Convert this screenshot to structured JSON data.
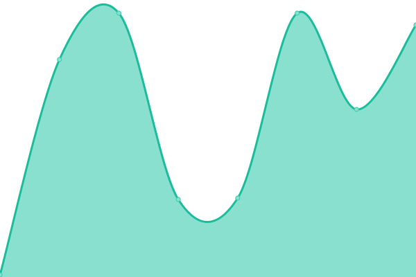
{
  "chart_data": {
    "type": "area",
    "title": "",
    "xlabel": "",
    "ylabel": "",
    "x": [
      0,
      1,
      2,
      3,
      4,
      5,
      6,
      7
    ],
    "values": [
      3,
      314,
      381,
      112,
      114,
      381,
      242,
      364
    ],
    "ylim": [
      0,
      400
    ],
    "grid": false,
    "legend": "none",
    "curve": "smooth",
    "colors": {
      "line": "#1abc9c",
      "fill": "#8ae0cf",
      "point_fill": "#8ae0cf",
      "point_stroke": "#3fcfae"
    }
  }
}
